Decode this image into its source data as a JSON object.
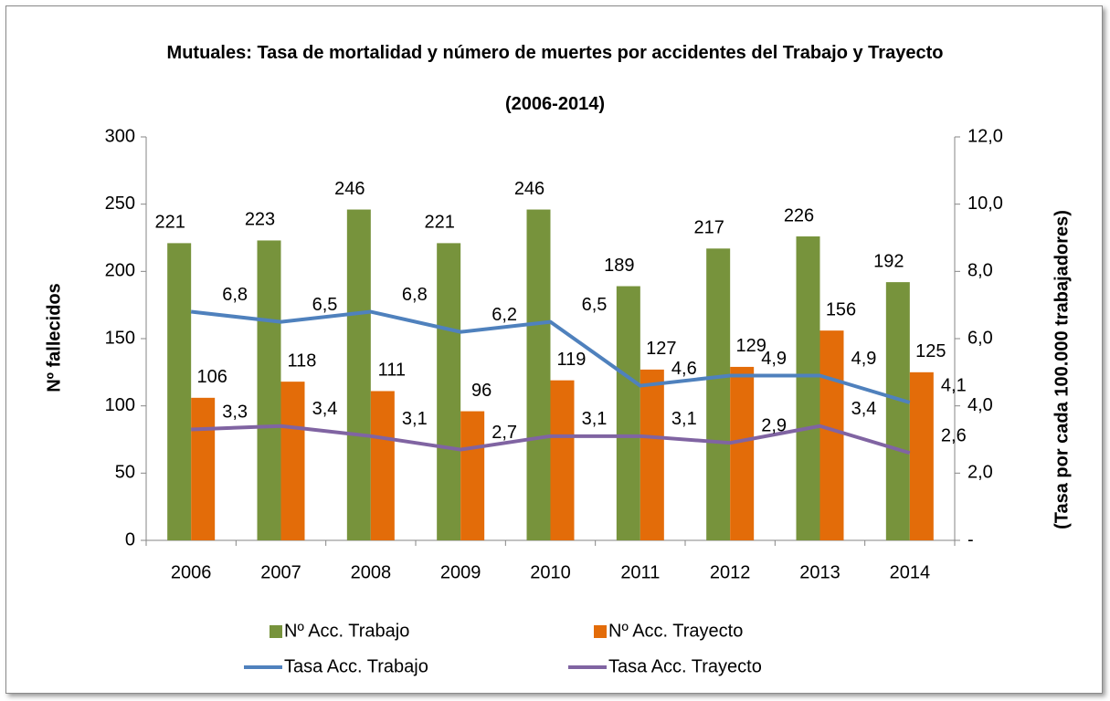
{
  "chart_data": {
    "type": "bar_line",
    "title": "Mutuales: Tasa de mortalidad y número de muertes por accidentes del Trabajo y Trayecto",
    "subtitle": "(2006-2014)",
    "y_label": "Nº fallecidos",
    "y2_label": "(Tasa por cada 100.000 trabajadores)",
    "categories": [
      "2006",
      "2007",
      "2008",
      "2009",
      "2010",
      "2011",
      "2012",
      "2013",
      "2014"
    ],
    "ylim": [
      0,
      300
    ],
    "yticks": [
      0,
      50,
      100,
      150,
      200,
      250,
      300
    ],
    "y2lim": [
      0,
      12
    ],
    "y2ticks": [
      {
        "value": 0,
        "label": "-"
      },
      {
        "value": 2,
        "label": "2,0"
      },
      {
        "value": 4,
        "label": "4,0"
      },
      {
        "value": 6,
        "label": "6,0"
      },
      {
        "value": 8,
        "label": "8,0"
      },
      {
        "value": 10,
        "label": "10,0"
      },
      {
        "value": 12,
        "label": "12,0"
      }
    ],
    "series": [
      {
        "name": "Nº Acc. Trabajo",
        "type": "bar",
        "color": "#77933c",
        "values": [
          221,
          223,
          246,
          221,
          246,
          189,
          217,
          226,
          192
        ]
      },
      {
        "name": "Nº Acc. Trayecto",
        "type": "bar",
        "color": "#e36c09",
        "values": [
          106,
          118,
          111,
          96,
          119,
          127,
          129,
          156,
          125
        ]
      },
      {
        "name": "Tasa Acc. Trabajo",
        "type": "line",
        "axis": "y2",
        "color": "#4f81bd",
        "values": [
          6.8,
          6.5,
          6.8,
          6.2,
          6.5,
          4.6,
          4.9,
          4.9,
          4.1
        ],
        "value_labels": [
          "6,8",
          "6,5",
          "6,8",
          "6,2",
          "6,5",
          "4,6",
          "4,9",
          "4,9",
          "4,1"
        ]
      },
      {
        "name": "Tasa Acc. Trayecto",
        "type": "line",
        "axis": "y2",
        "color": "#8064a2",
        "values": [
          3.3,
          3.4,
          3.1,
          2.7,
          3.1,
          3.1,
          2.9,
          3.4,
          2.6
        ],
        "value_labels": [
          "3,3",
          "3,4",
          "3,1",
          "2,7",
          "3,1",
          "3,1",
          "2,9",
          "3,4",
          "2,6"
        ]
      }
    ],
    "legend": "bottom"
  }
}
